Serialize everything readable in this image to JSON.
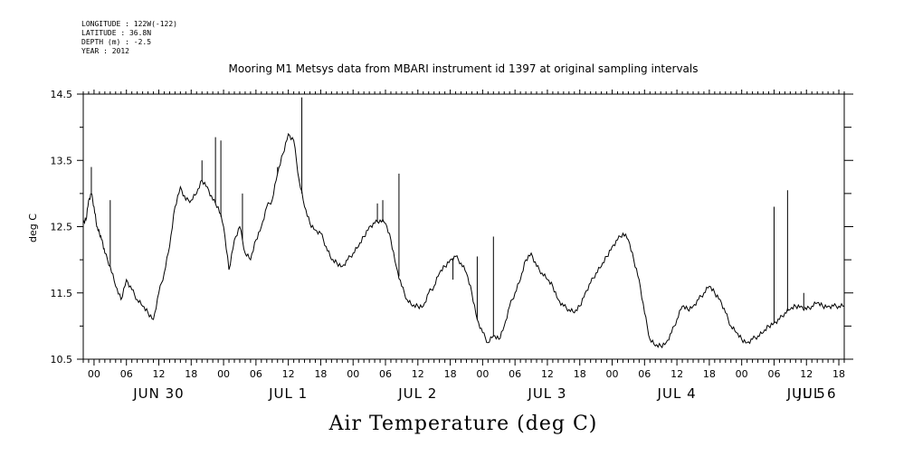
{
  "header": {
    "longitude": "LONGITUDE : 122W(-122)",
    "latitude": "LATITUDE : 36.8N",
    "depth": "DEPTH (m) : -2.5",
    "year": "YEAR : 2012"
  },
  "chart_data": {
    "type": "line",
    "title": "Mooring M1 Metsys data from MBARI instrument id 1397 at original sampling intervals",
    "xlabel": "Air Temperature (deg C)",
    "ylabel": "deg C",
    "ylim": [
      10.5,
      14.5
    ],
    "yticks": [
      10.5,
      11.5,
      12.5,
      13.5,
      14.5
    ],
    "ytick_labels": [
      "10.5",
      "11.5",
      "12.5",
      "13.5",
      "14.5"
    ],
    "x_units": "hours since 2012-06-30 00:00",
    "xlim": [
      -2,
      139
    ],
    "hour_ticks": [
      0,
      6,
      12,
      18,
      24,
      30,
      36,
      42,
      48,
      54,
      60,
      66,
      72,
      78,
      84,
      90,
      96,
      102,
      108,
      114,
      120,
      126,
      132,
      138
    ],
    "hour_tick_labels": [
      "00",
      "06",
      "12",
      "18",
      "00",
      "06",
      "12",
      "18",
      "00",
      "06",
      "12",
      "18",
      "00",
      "06",
      "12",
      "18",
      "00",
      "06",
      "12",
      "18",
      "00",
      "06",
      "12",
      "18"
    ],
    "day_labels": [
      {
        "x": 12,
        "label": "JUN 30"
      },
      {
        "x": 36,
        "label": "JUL  1"
      },
      {
        "x": 60,
        "label": "JUL  2"
      },
      {
        "x": 84,
        "label": "JUL  3"
      },
      {
        "x": 108,
        "label": "JUL  4"
      },
      {
        "x": 132,
        "label": "JUL  5"
      },
      {
        "x": 156,
        "label": "JUL  6"
      }
    ],
    "series": [
      {
        "x": [
          -2,
          -1.5,
          -1,
          -0.5,
          0,
          0.5,
          1,
          1.5,
          2,
          3,
          4,
          5,
          6,
          7,
          8,
          9,
          10,
          11,
          12,
          13,
          14,
          15,
          16,
          17,
          18,
          19,
          20,
          21,
          22,
          23,
          24,
          25,
          26,
          27,
          28,
          29,
          30,
          31,
          32,
          33,
          34,
          35,
          36,
          37,
          38,
          39,
          40,
          41,
          42,
          43,
          44,
          45,
          46,
          47,
          48,
          49,
          50,
          51,
          52,
          53,
          54,
          55,
          56,
          57,
          58,
          59,
          60,
          61,
          62,
          63,
          64,
          65,
          66,
          67,
          68,
          69,
          70,
          71,
          72,
          73,
          74,
          75,
          76,
          77,
          78,
          79,
          80,
          81,
          82,
          83,
          84,
          85,
          86,
          87,
          88,
          89,
          90,
          91,
          92,
          93,
          94,
          95,
          96,
          97,
          98,
          99,
          100,
          101,
          102,
          103,
          104,
          105,
          106,
          107,
          108,
          109,
          110,
          111,
          112,
          113,
          114,
          115,
          116,
          117,
          118,
          119,
          120,
          121,
          122,
          123,
          124,
          125,
          126,
          127,
          128,
          129,
          130,
          131,
          132,
          133,
          134,
          135,
          136,
          137,
          138,
          139
        ],
        "values": [
          12.55,
          12.6,
          12.9,
          13.0,
          12.8,
          12.5,
          12.4,
          12.3,
          12.1,
          11.9,
          11.6,
          11.4,
          11.7,
          11.55,
          11.4,
          11.3,
          11.2,
          11.1,
          11.5,
          11.8,
          12.2,
          12.8,
          13.1,
          12.9,
          12.9,
          13.0,
          13.2,
          13.1,
          12.9,
          12.8,
          12.5,
          11.85,
          12.3,
          12.5,
          12.1,
          12.0,
          12.3,
          12.5,
          12.8,
          12.9,
          13.3,
          13.6,
          13.9,
          13.8,
          13.2,
          12.8,
          12.55,
          12.45,
          12.4,
          12.2,
          12.0,
          11.95,
          11.9,
          12.0,
          12.1,
          12.2,
          12.35,
          12.5,
          12.55,
          12.6,
          12.55,
          12.3,
          11.9,
          11.6,
          11.4,
          11.3,
          11.3,
          11.3,
          11.5,
          11.6,
          11.8,
          11.9,
          12.0,
          12.05,
          11.95,
          11.8,
          11.5,
          11.1,
          10.9,
          10.75,
          10.85,
          10.8,
          11.0,
          11.3,
          11.5,
          11.7,
          12.0,
          12.1,
          11.9,
          11.8,
          11.7,
          11.6,
          11.4,
          11.3,
          11.25,
          11.2,
          11.3,
          11.5,
          11.65,
          11.8,
          11.9,
          12.05,
          12.2,
          12.3,
          12.4,
          12.3,
          12.0,
          11.7,
          11.2,
          10.8,
          10.7,
          10.7,
          10.75,
          10.9,
          11.1,
          11.3,
          11.25,
          11.3,
          11.4,
          11.5,
          11.6,
          11.5,
          11.4,
          11.2,
          11.0,
          10.9,
          10.8,
          10.75,
          10.8,
          10.85,
          10.9,
          11.0,
          11.05,
          11.1,
          11.2,
          11.25,
          11.3,
          11.3,
          11.25,
          11.3,
          11.35,
          11.3,
          11.3,
          11.3,
          11.3,
          11.3
        ]
      }
    ],
    "spikes": [
      {
        "x": -0.5,
        "y": 13.4
      },
      {
        "x": 3,
        "y": 12.9
      },
      {
        "x": 20,
        "y": 13.5
      },
      {
        "x": 22.5,
        "y": 13.85
      },
      {
        "x": 23.5,
        "y": 13.8
      },
      {
        "x": 27.5,
        "y": 13.0
      },
      {
        "x": 34,
        "y": 13.4
      },
      {
        "x": 38.5,
        "y": 14.45
      },
      {
        "x": 52.5,
        "y": 12.85
      },
      {
        "x": 53.5,
        "y": 12.9
      },
      {
        "x": 56.5,
        "y": 13.3
      },
      {
        "x": 66.5,
        "y": 11.7
      },
      {
        "x": 71,
        "y": 12.05
      },
      {
        "x": 74,
        "y": 12.35
      },
      {
        "x": 126,
        "y": 12.8
      },
      {
        "x": 128.5,
        "y": 13.05
      },
      {
        "x": 131.5,
        "y": 11.5
      }
    ]
  }
}
